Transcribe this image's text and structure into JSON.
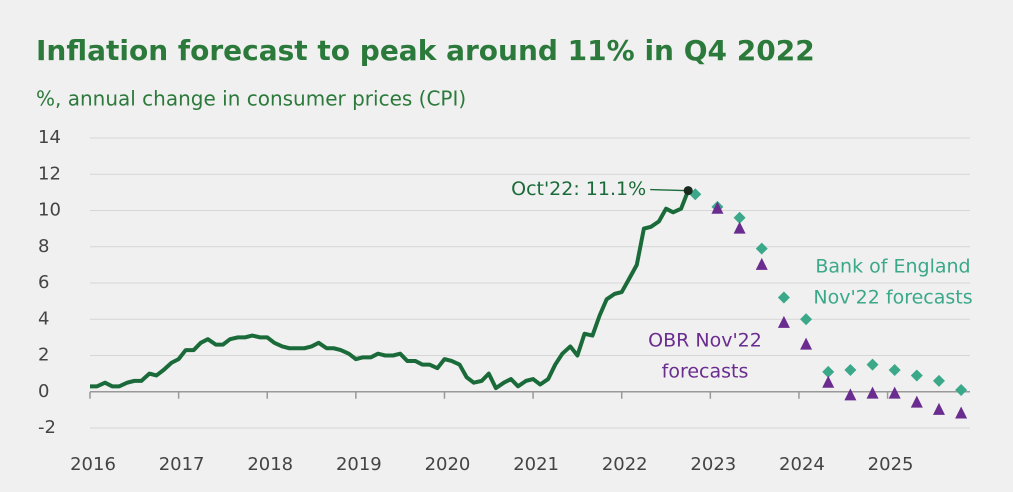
{
  "chart_data": {
    "type": "line",
    "title": "Inflation forecast to peak around 11% in Q4 2022",
    "subtitle": "%, annual change in consumer prices (CPI)",
    "xlim": [
      2016,
      2025.93
    ],
    "xticks": [
      2016,
      2017,
      2018,
      2019,
      2020,
      2021,
      2022,
      2023,
      2024,
      2025
    ],
    "ylim": [
      -2,
      14
    ],
    "yticks": [
      -2,
      0,
      2,
      4,
      6,
      8,
      10,
      12,
      14
    ],
    "grid": true,
    "series": [
      {
        "type": "line",
        "color": "#1b6b3a",
        "x": [
          2016.0,
          2016.08,
          2016.17,
          2016.25,
          2016.33,
          2016.42,
          2016.5,
          2016.58,
          2016.67,
          2016.75,
          2016.83,
          2016.92,
          2017.0,
          2017.08,
          2017.17,
          2017.25,
          2017.33,
          2017.42,
          2017.5,
          2017.58,
          2017.67,
          2017.75,
          2017.83,
          2017.92,
          2018.0,
          2018.08,
          2018.17,
          2018.25,
          2018.33,
          2018.42,
          2018.5,
          2018.58,
          2018.67,
          2018.75,
          2018.83,
          2018.92,
          2019.0,
          2019.08,
          2019.17,
          2019.25,
          2019.33,
          2019.42,
          2019.5,
          2019.58,
          2019.67,
          2019.75,
          2019.83,
          2019.92,
          2020.0,
          2020.08,
          2020.17,
          2020.25,
          2020.33,
          2020.42,
          2020.5,
          2020.58,
          2020.67,
          2020.75,
          2020.83,
          2020.92,
          2021.0,
          2021.08,
          2021.17,
          2021.25,
          2021.33,
          2021.42,
          2021.5,
          2021.58,
          2021.67,
          2021.75,
          2021.83,
          2021.92,
          2022.0,
          2022.08,
          2022.17,
          2022.25,
          2022.33,
          2022.42,
          2022.5,
          2022.58,
          2022.67,
          2022.75
        ],
        "values": [
          0.3,
          0.3,
          0.5,
          0.3,
          0.3,
          0.5,
          0.6,
          0.6,
          1.0,
          0.9,
          1.2,
          1.6,
          1.8,
          2.3,
          2.3,
          2.7,
          2.9,
          2.6,
          2.6,
          2.9,
          3.0,
          3.0,
          3.1,
          3.0,
          3.0,
          2.7,
          2.5,
          2.4,
          2.4,
          2.4,
          2.5,
          2.7,
          2.4,
          2.4,
          2.3,
          2.1,
          1.8,
          1.9,
          1.9,
          2.1,
          2.0,
          2.0,
          2.1,
          1.7,
          1.7,
          1.5,
          1.5,
          1.3,
          1.8,
          1.7,
          1.5,
          0.8,
          0.5,
          0.6,
          1.0,
          0.2,
          0.5,
          0.7,
          0.3,
          0.6,
          0.7,
          0.4,
          0.7,
          1.5,
          2.1,
          2.5,
          2.0,
          3.2,
          3.1,
          4.2,
          5.1,
          5.4,
          5.5,
          6.2,
          7.0,
          9.0,
          9.1,
          9.4,
          10.1,
          9.9,
          10.1,
          11.1
        ]
      },
      {
        "type": "scatter",
        "marker": "diamond",
        "color": "#3aa889",
        "x": [
          2022.83,
          2023.08,
          2023.33,
          2023.58,
          2023.83,
          2024.08,
          2024.33,
          2024.58,
          2024.83,
          2025.08,
          2025.33,
          2025.58,
          2025.83
        ],
        "values": [
          10.9,
          10.2,
          9.6,
          7.9,
          5.2,
          4.0,
          1.1,
          1.2,
          1.5,
          1.2,
          0.9,
          0.6,
          0.1
        ]
      },
      {
        "type": "scatter",
        "marker": "triangle",
        "color": "#6a2c8f",
        "x": [
          2023.08,
          2023.33,
          2023.58,
          2023.83,
          2024.08,
          2024.33,
          2024.58,
          2024.83,
          2025.08,
          2025.33,
          2025.58,
          2025.83
        ],
        "values": [
          10.1,
          9.0,
          7.0,
          3.8,
          2.6,
          0.5,
          -0.2,
          -0.1,
          -0.1,
          -0.6,
          -1.0,
          -1.2
        ]
      }
    ],
    "annotations": [
      {
        "lines": [
          "Oct'22: 11.1%"
        ],
        "color": "#1b6b3a"
      },
      {
        "lines": [
          "Bank of England",
          "Nov'22 forecasts"
        ],
        "color": "#3aa889"
      },
      {
        "lines": [
          "OBR Nov'22",
          "forecasts"
        ],
        "color": "#6a2c8f"
      }
    ]
  }
}
